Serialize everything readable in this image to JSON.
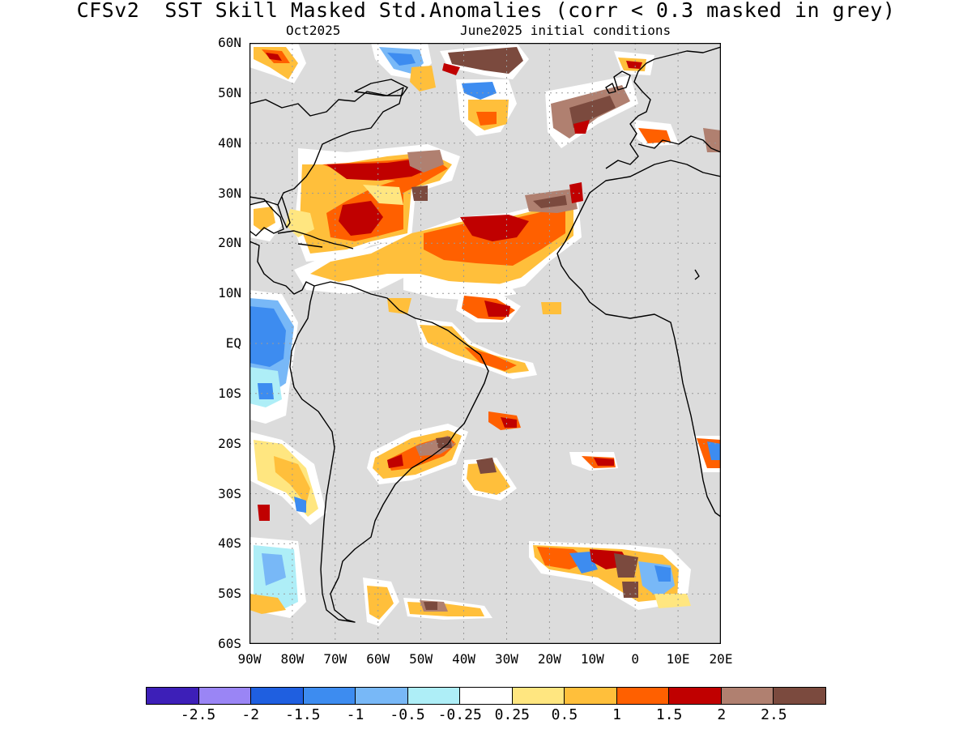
{
  "title": "CFSv2  SST Skill Masked Std.Anomalies (corr < 0.3 masked in grey)",
  "subtitle_left": "Oct2025",
  "subtitle_right": "June2025 initial conditions",
  "map": {
    "lat_labels": [
      "60N",
      "50N",
      "40N",
      "30N",
      "20N",
      "10N",
      "EQ",
      "10S",
      "20S",
      "30S",
      "40S",
      "50S",
      "60S"
    ],
    "lon_labels": [
      "90W",
      "80W",
      "70W",
      "60W",
      "50W",
      "40W",
      "30W",
      "20W",
      "10W",
      "0",
      "10E",
      "20E"
    ],
    "mask_color": "#dcdcdc",
    "land_color": "#dcdcdc",
    "grid": "dotted",
    "domain": {
      "lon_range": [
        -90,
        20
      ],
      "lat_range": [
        -60,
        60
      ]
    }
  },
  "legend": {
    "colors": [
      "#3d1fb8",
      "#9a85f5",
      "#1f5fe0",
      "#3d8cf0",
      "#78b8f7",
      "#aeeef7",
      "#ffffff",
      "#ffe680",
      "#ffbf3b",
      "#ff6000",
      "#c00000",
      "#b08070",
      "#7b4a3e"
    ],
    "labels": [
      "-2.5",
      "-2",
      "-1.5",
      "-1",
      "-0.5",
      "-0.25",
      "0.25",
      "0.5",
      "1",
      "1.5",
      "2",
      "2.5"
    ]
  }
}
